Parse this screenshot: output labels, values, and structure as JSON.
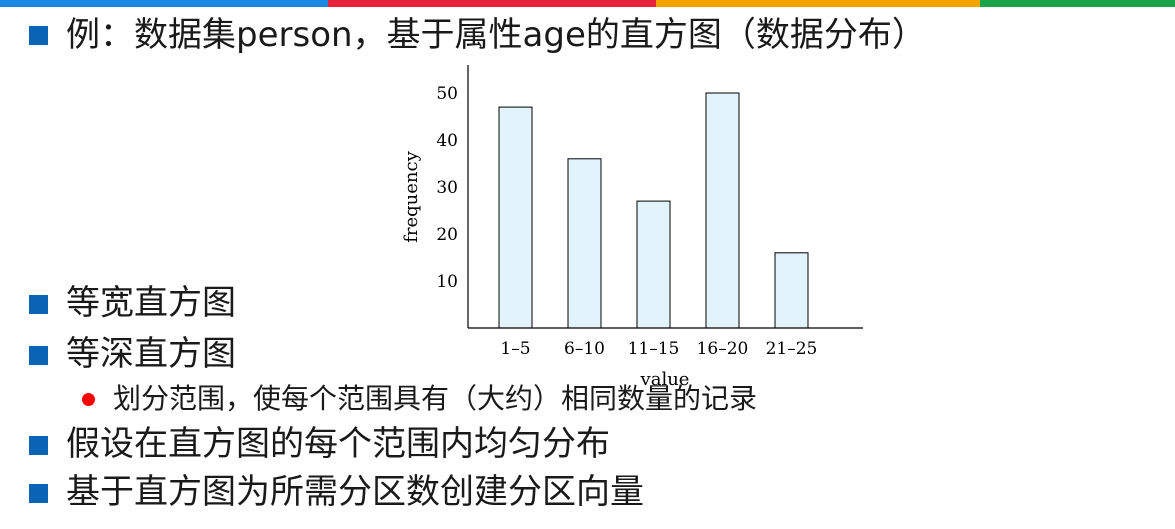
{
  "colors": {
    "topbar": [
      "#1a87e0",
      "#e8243c",
      "#f5a300",
      "#1ba34a"
    ],
    "bullet_square": "#0b63b6",
    "bullet_dot": "#ff0000",
    "bar_fill": "#e3f3fb"
  },
  "slide": {
    "title": "例：数据集person，基于属性age的直方图（数据分布）",
    "bullets": [
      "等宽直方图",
      "等深直方图",
      "假设在直方图的每个范围内均匀分布",
      "基于直方图为所需分区数创建分区向量"
    ],
    "sub_bullet": "划分范围，使每个范围具有（大约）相同数量的记录"
  },
  "chart_data": {
    "type": "bar",
    "categories": [
      "1–5",
      "6–10",
      "11–15",
      "16–20",
      "21–25"
    ],
    "values": [
      47,
      36,
      27,
      50,
      16
    ],
    "xlabel": "value",
    "ylabel": "frequency",
    "yticks": [
      10,
      20,
      30,
      40,
      50
    ],
    "ylim": [
      0,
      55
    ],
    "grid": false,
    "legend": "none"
  }
}
